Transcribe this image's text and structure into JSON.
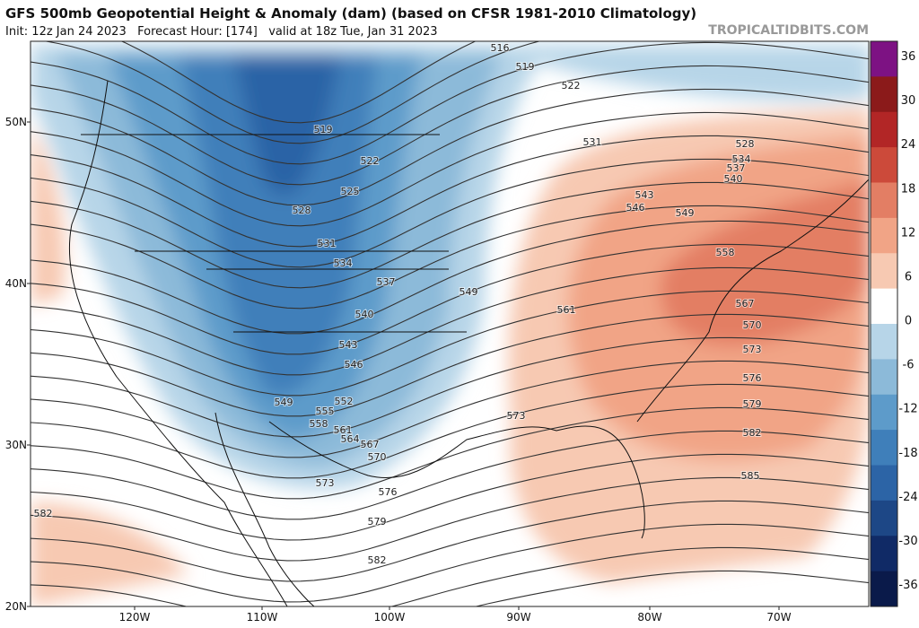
{
  "header": {
    "title": "GFS 500mb Geopotential Height & Anomaly (dam) (based on CFSR 1981-2010 Climatology)",
    "subtitle": "Init: 12z Jan 24 2023   Forecast Hour: [174]   valid at 18z Tue, Jan 31 2023",
    "watermark": "TROPICALTIDBITS.COM"
  },
  "lat_labels": [
    "50N",
    "40N",
    "30N",
    "20N"
  ],
  "lon_labels": [
    "120W",
    "110W",
    "100W",
    "90W",
    "80W",
    "70W"
  ],
  "colorbar": {
    "labels": [
      36,
      30,
      24,
      18,
      12,
      6,
      0,
      -6,
      -12,
      -18,
      -24,
      -30,
      -36
    ]
  },
  "contour_labels": [
    516,
    519,
    522,
    531,
    528,
    534,
    537,
    540,
    543,
    546,
    549,
    558,
    567,
    570,
    573,
    576,
    579,
    582,
    585,
    519,
    522,
    525,
    528,
    531,
    534,
    537,
    540,
    543,
    546,
    549,
    552,
    555,
    558,
    561,
    564,
    567,
    570,
    573,
    576,
    579,
    582,
    549,
    561,
    573,
    582
  ]
}
